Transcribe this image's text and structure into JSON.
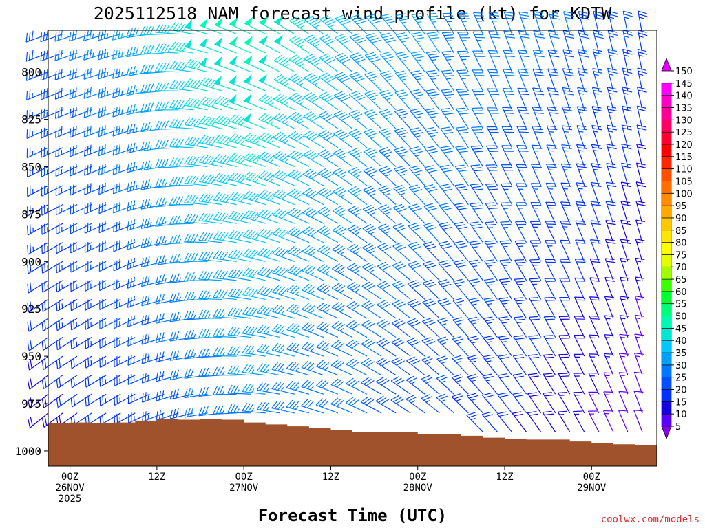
{
  "chart_data": {
    "type": "wind-barb profile",
    "title": "2025112518 NAM forecast wind profile (kt) for KDTW",
    "xlabel": "Forecast Time (UTC)",
    "ylabel": "",
    "credit": "coolwx.com/models",
    "y_ticks": [
      800,
      825,
      850,
      875,
      900,
      925,
      950,
      975,
      1000
    ],
    "y_range_hPa": [
      778,
      1008
    ],
    "x_range_hours": [
      -3,
      81
    ],
    "x_ticks": [
      {
        "hour": 0,
        "line1": "00Z",
        "line2": "26NOV",
        "line3": "2025"
      },
      {
        "hour": 12,
        "line1": "12Z",
        "line2": "",
        "line3": ""
      },
      {
        "hour": 24,
        "line1": "00Z",
        "line2": "27NOV",
        "line3": ""
      },
      {
        "hour": 36,
        "line1": "12Z",
        "line2": "",
        "line3": ""
      },
      {
        "hour": 48,
        "line1": "00Z",
        "line2": "28NOV",
        "line3": ""
      },
      {
        "hour": 60,
        "line1": "12Z",
        "line2": "",
        "line3": ""
      },
      {
        "hour": 72,
        "line1": "00Z",
        "line2": "29NOV",
        "line3": ""
      }
    ],
    "levels_hPa": [
      780,
      790,
      800,
      810,
      820,
      830,
      840,
      850,
      860,
      870,
      880,
      890,
      900,
      910,
      920,
      930,
      940,
      950,
      960,
      970,
      980,
      990
    ],
    "times_hours": [
      -3,
      -1,
      1,
      3,
      5,
      7,
      9,
      11,
      13,
      15,
      17,
      19,
      21,
      23,
      25,
      27,
      29,
      31,
      33,
      35,
      37,
      39,
      41,
      43,
      45,
      47,
      49,
      51,
      53,
      55,
      57,
      59,
      61,
      63,
      65,
      67,
      69,
      71,
      73,
      75,
      77,
      79
    ],
    "wind_model": {
      "speed_key_times": [
        -3,
        9,
        20,
        27,
        40,
        55,
        70,
        80
      ],
      "speed_upper_kt": [
        28,
        36,
        50,
        52,
        40,
        34,
        30,
        24
      ],
      "speed_lower_kt": [
        18,
        22,
        30,
        34,
        30,
        24,
        16,
        10
      ],
      "dir_key_times": [
        -3,
        9,
        20,
        30,
        45,
        60,
        80
      ],
      "dir_upper_deg": [
        250,
        255,
        290,
        300,
        320,
        340,
        350
      ],
      "dir_lower_deg": [
        230,
        240,
        260,
        280,
        300,
        320,
        340
      ]
    },
    "surface_pressure": [
      {
        "hour": -3,
        "hPa": 985.5
      },
      {
        "hour": 0,
        "hPa": 985
      },
      {
        "hour": 3,
        "hPa": 985.5
      },
      {
        "hour": 6,
        "hPa": 985
      },
      {
        "hour": 9,
        "hPa": 984
      },
      {
        "hour": 12,
        "hPa": 983
      },
      {
        "hour": 15,
        "hPa": 983.5
      },
      {
        "hour": 18,
        "hPa": 983
      },
      {
        "hour": 21,
        "hPa": 983.5
      },
      {
        "hour": 24,
        "hPa": 985
      },
      {
        "hour": 27,
        "hPa": 986
      },
      {
        "hour": 30,
        "hPa": 987
      },
      {
        "hour": 33,
        "hPa": 988
      },
      {
        "hour": 36,
        "hPa": 989
      },
      {
        "hour": 39,
        "hPa": 990
      },
      {
        "hour": 42,
        "hPa": 990
      },
      {
        "hour": 45,
        "hPa": 990
      },
      {
        "hour": 48,
        "hPa": 991
      },
      {
        "hour": 51,
        "hPa": 991
      },
      {
        "hour": 54,
        "hPa": 992
      },
      {
        "hour": 57,
        "hPa": 993
      },
      {
        "hour": 60,
        "hPa": 993.5
      },
      {
        "hour": 63,
        "hPa": 994
      },
      {
        "hour": 66,
        "hPa": 994
      },
      {
        "hour": 69,
        "hPa": 995
      },
      {
        "hour": 72,
        "hPa": 996
      },
      {
        "hour": 75,
        "hPa": 996.5
      },
      {
        "hour": 78,
        "hPa": 997
      },
      {
        "hour": 81,
        "hPa": 997
      }
    ],
    "colorbar": {
      "labels": [
        5,
        10,
        15,
        20,
        25,
        30,
        35,
        40,
        45,
        50,
        55,
        60,
        65,
        70,
        75,
        80,
        85,
        90,
        95,
        100,
        105,
        110,
        115,
        120,
        125,
        130,
        135,
        140,
        145,
        150
      ],
      "colors": [
        "#8a00ff",
        "#5a00ff",
        "#1400e6",
        "#0032ff",
        "#0050ff",
        "#0078ff",
        "#00a0ff",
        "#00c8ff",
        "#00e6d2",
        "#00fab4",
        "#00ff78",
        "#00ff32",
        "#3cff00",
        "#a0ff00",
        "#e6ff00",
        "#ffff00",
        "#ffe600",
        "#ffc800",
        "#ffaa00",
        "#ff8c00",
        "#ff6e00",
        "#ff5000",
        "#ff2800",
        "#ff0000",
        "#ff0032",
        "#ff0064",
        "#ff0096",
        "#ff00c8",
        "#ff00ff",
        "#e600ff"
      ]
    },
    "ground_color": "#a0522d"
  }
}
